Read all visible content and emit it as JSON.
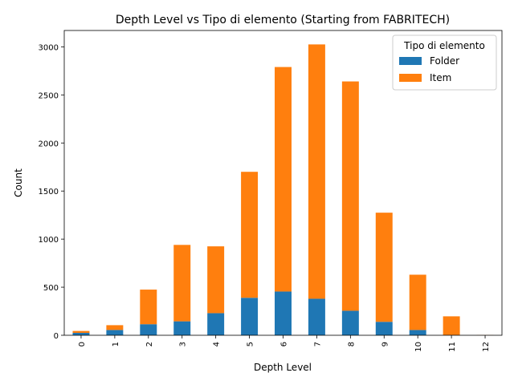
{
  "chart_data": {
    "type": "bar",
    "stacked": true,
    "title": "Depth Level vs Tipo di elemento (Starting from FABRITECH)",
    "xlabel": "Depth Level",
    "ylabel": "Count",
    "categories": [
      "0",
      "1",
      "2",
      "3",
      "4",
      "5",
      "6",
      "7",
      "8",
      "9",
      "10",
      "11",
      "12"
    ],
    "ylim": [
      0,
      3170
    ],
    "yticks": [
      0,
      500,
      1000,
      1500,
      2000,
      2500,
      3000
    ],
    "grid": false,
    "legend": {
      "title": "Tipo di elemento",
      "placement": "top-right"
    },
    "series": [
      {
        "name": "Folder",
        "color": "#1f77b4",
        "values": [
          25,
          55,
          115,
          145,
          230,
          390,
          455,
          380,
          255,
          140,
          55,
          2,
          0
        ]
      },
      {
        "name": "Item",
        "color": "#ff7f0e",
        "values": [
          20,
          50,
          360,
          795,
          695,
          1310,
          2335,
          2645,
          2385,
          1135,
          575,
          195,
          2
        ]
      }
    ]
  }
}
